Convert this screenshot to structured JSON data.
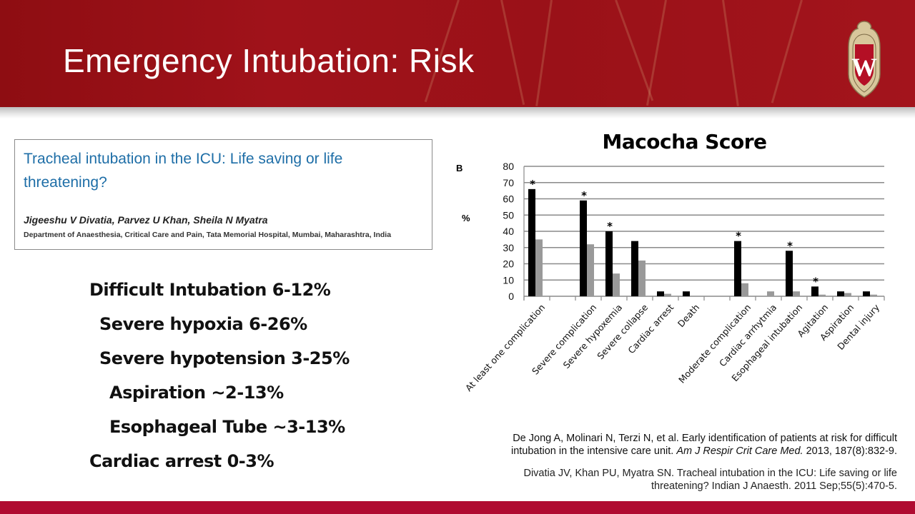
{
  "slide": {
    "title": "Emergency Intubation: Risk",
    "logo_letter": "W",
    "colors": {
      "header_red": "#9a1118",
      "footer_red": "#b00b31",
      "paper_title_blue": "#1e6ea7",
      "bar_black": "#000000",
      "bar_gray": "#999999"
    }
  },
  "paper": {
    "title": "Tracheal intubation in the ICU: Life saving or life threatening?",
    "authors": "Jigeeshu V Divatia, Parvez U Khan, Sheila N Myatra",
    "department": "Department of Anaesthesia, Critical Care and Pain, Tata Memorial Hospital, Mumbai, Maharashtra, India"
  },
  "bullets": [
    {
      "text": "Difficult Intubation 6-12%",
      "level": 1
    },
    {
      "text": "Severe hypoxia 6-26%",
      "level": 2
    },
    {
      "text": "Severe hypotension 3-25%",
      "level": 2
    },
    {
      "text": "Aspiration ~2-13%",
      "level": 3
    },
    {
      "text": "Esophageal Tube ~3-13%",
      "level": 3
    },
    {
      "text": "Cardiac arrest 0-3%",
      "level": 1
    }
  ],
  "chart_data": {
    "type": "bar",
    "title": "Macocha Score",
    "panel_label": "B",
    "xlabel": "",
    "ylabel": "%",
    "ylim": [
      0,
      80
    ],
    "yticks": [
      0,
      10,
      20,
      30,
      40,
      50,
      60,
      70,
      80
    ],
    "grid": true,
    "categories": [
      "At least one complication",
      "",
      "Severe complication",
      "Severe hypoxemia",
      "Severe collapse",
      "Cardiac arrest",
      "Death",
      "",
      "Moderate complication",
      "Cardiac arrhytmia",
      "Esophageal intubation",
      "Agitation",
      "Aspiration",
      "Dental injury"
    ],
    "series": [
      {
        "name": "black",
        "color": "#000000",
        "values": [
          66,
          null,
          59,
          40,
          34,
          3,
          3,
          null,
          34,
          0,
          28,
          6,
          3,
          3
        ]
      },
      {
        "name": "gray",
        "color": "#999999",
        "values": [
          35,
          null,
          32,
          14,
          22,
          1.5,
          0,
          null,
          8,
          3,
          3,
          1,
          2,
          1
        ]
      }
    ],
    "significance_marker": "*",
    "significant": [
      true,
      false,
      true,
      true,
      false,
      false,
      false,
      false,
      true,
      false,
      true,
      true,
      false,
      false
    ]
  },
  "references": [
    {
      "text_before": "De Jong A, Molinari N, Terzi N, et al. Early identification of patients at risk for difficult intubation in the intensive care unit. ",
      "journal": "Am J Respir Crit Care Med.",
      "text_after": " 2013, 187(8):832-9."
    },
    {
      "text": "Divatia JV, Khan PU, Myatra SN. Tracheal intubation in the ICU: Life saving or life threatening? Indian J Anaesth. 2011 Sep;55(5):470-5."
    }
  ]
}
